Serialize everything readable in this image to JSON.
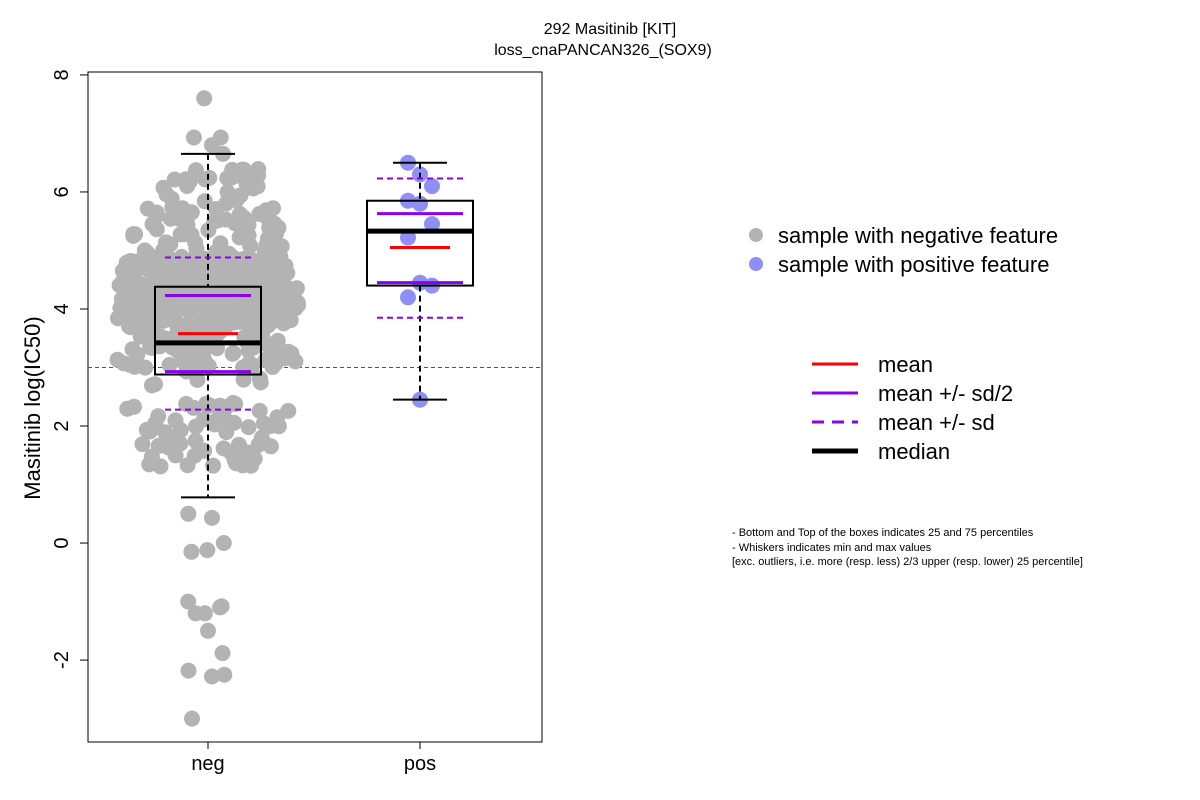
{
  "chart_data": {
    "type": "box",
    "title": "292 Masitinib [KIT]",
    "subtitle": "loss_cnaPANCAN326_(SOX9)",
    "ylabel": "Masitinib log(IC50)",
    "xlabel": "",
    "ylim": [
      -3.4,
      8.05
    ],
    "yticks": [
      -2,
      0,
      2,
      4,
      6,
      8
    ],
    "categories": [
      "neg",
      "pos"
    ],
    "reference_line": 3.0,
    "colors": {
      "neg_points": "#b3b3b3",
      "pos_points": "#8f8ff5",
      "mean": "#ff0000",
      "sd": "#8b00ee",
      "median": "#000000"
    },
    "groups": [
      {
        "name": "neg",
        "median": 3.42,
        "q1": 2.88,
        "q3": 4.38,
        "whisker_low": 0.78,
        "whisker_high": 6.65,
        "mean": 3.58,
        "mean_minus_half_sd": 2.93,
        "mean_plus_half_sd": 4.23,
        "mean_minus_sd": 2.28,
        "mean_plus_sd": 4.88,
        "outliers": [
          0.5,
          0.43,
          0.0,
          -0.15,
          -0.12,
          -1.08,
          -1.2,
          -1.2,
          -1.1,
          -1.0,
          -1.5,
          -1.88,
          -2.18,
          -2.28,
          -2.25,
          -3.0,
          7.6,
          6.93,
          6.93,
          6.8,
          6.65
        ]
      },
      {
        "name": "pos",
        "median": 5.33,
        "q1": 4.4,
        "q3": 5.85,
        "whisker_low": 2.45,
        "whisker_high": 6.5,
        "mean": 5.05,
        "mean_minus_half_sd": 4.45,
        "mean_plus_half_sd": 5.63,
        "mean_minus_sd": 3.85,
        "mean_plus_sd": 6.23,
        "points": [
          6.5,
          6.3,
          6.1,
          5.85,
          5.8,
          5.45,
          5.22,
          4.45,
          4.4,
          4.2,
          2.45
        ]
      }
    ],
    "legend_points": [
      {
        "label": "sample with negative feature",
        "color": "#b3b3b3"
      },
      {
        "label": "sample with positive feature",
        "color": "#8f8ff5"
      }
    ],
    "legend_lines": [
      {
        "label": "mean",
        "color": "#ff0000",
        "style": "solid"
      },
      {
        "label": "mean +/- sd/2",
        "color": "#8b00ee",
        "style": "solid"
      },
      {
        "label": "mean +/- sd",
        "color": "#8b00ee",
        "style": "dashed"
      },
      {
        "label": "median",
        "color": "#000000",
        "style": "solid-thick"
      }
    ],
    "notes": [
      "- Bottom and Top of the boxes indicates 25 and 75 percentiles",
      "- Whiskers indicates min and max values",
      "[exc. outliers, i.e. more (resp. less) 2/3 upper (resp. lower) 25 percentile]"
    ]
  }
}
